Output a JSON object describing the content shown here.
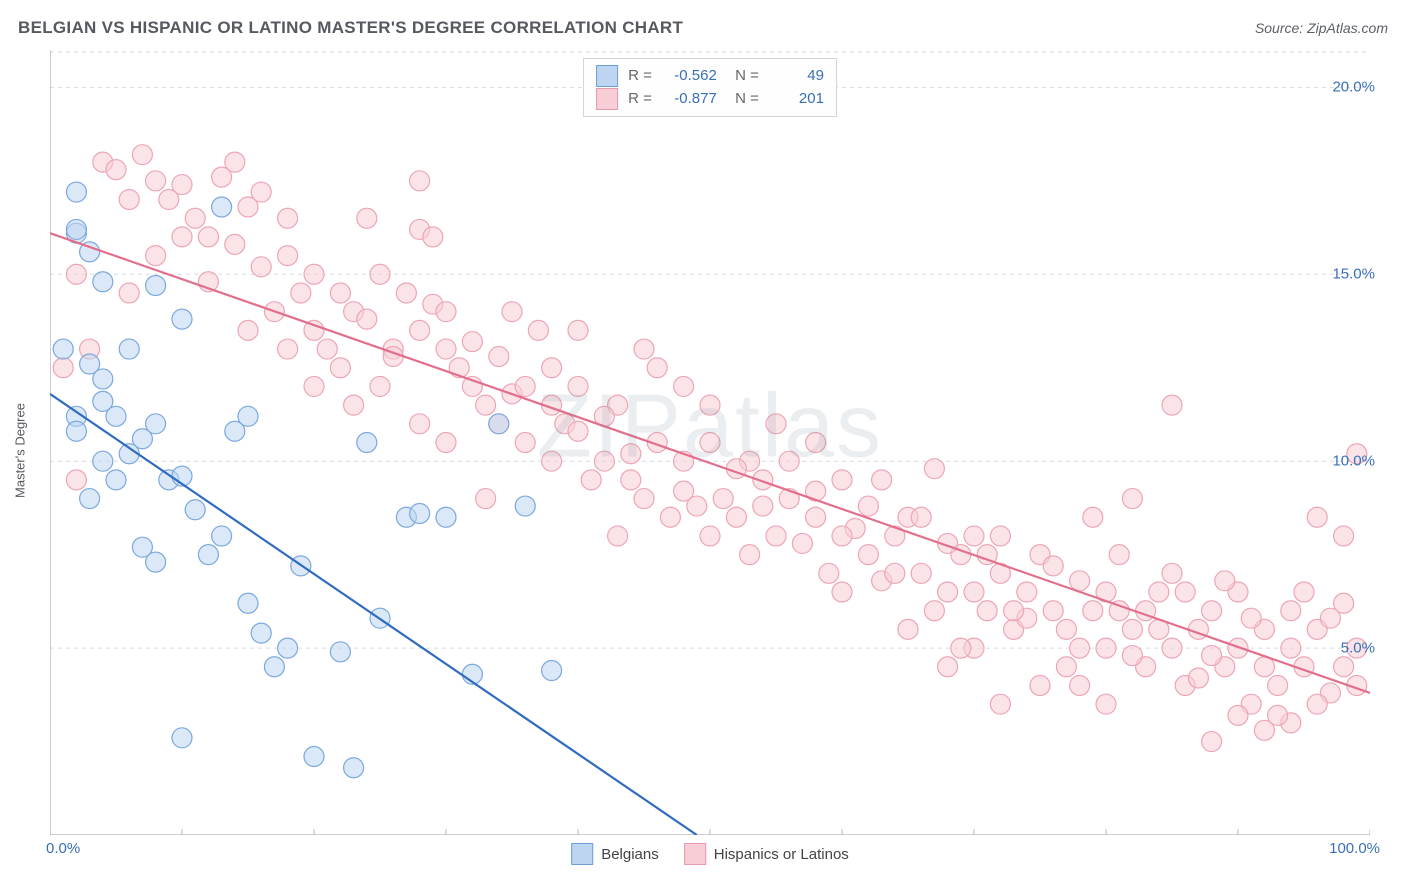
{
  "title": "BELGIAN VS HISPANIC OR LATINO MASTER'S DEGREE CORRELATION CHART",
  "source": "Source: ZipAtlas.com",
  "ylabel": "Master's Degree",
  "watermark": "ZIPatlas",
  "chart": {
    "type": "scatter",
    "xlim": [
      0,
      100
    ],
    "ylim": [
      0,
      21
    ],
    "xticks": [
      0,
      10,
      20,
      30,
      40,
      50,
      60,
      70,
      80,
      90,
      100
    ],
    "xtick_labels_shown": {
      "0": "0.0%",
      "100": "100.0%"
    },
    "yticks": [
      5,
      10,
      15,
      20
    ],
    "ytick_labels": [
      "5.0%",
      "10.0%",
      "15.0%",
      "20.0%"
    ],
    "grid_color": "#d7dbdf",
    "grid_dash": "4,4",
    "axis_color": "#b8bcc0",
    "background": "#ffffff",
    "marker_radius": 10,
    "marker_stroke_width": 1.2,
    "trendline_width": 2.2
  },
  "series": [
    {
      "name": "Belgians",
      "label": "Belgians",
      "fill": "#bdd5f0",
      "stroke": "#7ba8dd",
      "line_color": "#2f6bc0",
      "swatch_fill": "#bdd5f0",
      "swatch_stroke": "#6f9fd8",
      "R": "-0.562",
      "N": "49",
      "trend": {
        "x1": 0,
        "y1": 11.8,
        "x2": 49,
        "y2": 0
      },
      "points": [
        [
          2,
          17.2
        ],
        [
          2,
          16.1
        ],
        [
          2,
          16.2
        ],
        [
          3,
          15.6
        ],
        [
          4,
          14.8
        ],
        [
          1,
          13.0
        ],
        [
          3,
          12.6
        ],
        [
          4,
          12.2
        ],
        [
          5,
          11.2
        ],
        [
          4,
          11.6
        ],
        [
          2,
          11.2
        ],
        [
          2,
          10.8
        ],
        [
          4,
          10.0
        ],
        [
          3,
          9.0
        ],
        [
          5,
          9.5
        ],
        [
          6,
          10.2
        ],
        [
          7,
          10.6
        ],
        [
          8,
          11.0
        ],
        [
          6,
          13.0
        ],
        [
          8,
          14.7
        ],
        [
          9,
          9.5
        ],
        [
          10,
          9.6
        ],
        [
          10,
          13.8
        ],
        [
          11,
          8.7
        ],
        [
          12,
          7.5
        ],
        [
          13,
          8.0
        ],
        [
          13,
          16.8
        ],
        [
          14,
          10.8
        ],
        [
          15,
          6.2
        ],
        [
          15,
          11.2
        ],
        [
          16,
          5.4
        ],
        [
          17,
          4.5
        ],
        [
          18,
          5.0
        ],
        [
          19,
          7.2
        ],
        [
          20,
          2.1
        ],
        [
          22,
          4.9
        ],
        [
          23,
          1.8
        ],
        [
          24,
          10.5
        ],
        [
          25,
          5.8
        ],
        [
          27,
          8.5
        ],
        [
          28,
          8.6
        ],
        [
          30,
          8.5
        ],
        [
          32,
          4.3
        ],
        [
          34,
          11.0
        ],
        [
          36,
          8.8
        ],
        [
          38,
          4.4
        ],
        [
          10,
          2.6
        ],
        [
          7,
          7.7
        ],
        [
          8,
          7.3
        ]
      ]
    },
    {
      "name": "Hispanics or Latinos",
      "label": "Hispanics or Latinos",
      "fill": "#f8cdd6",
      "stroke": "#eda5b5",
      "line_color": "#e26f8b",
      "swatch_fill": "#f8cdd6",
      "swatch_stroke": "#e39aab",
      "R": "-0.877",
      "N": "201",
      "trend": {
        "x1": 0,
        "y1": 16.1,
        "x2": 100,
        "y2": 3.8
      },
      "points": [
        [
          4,
          18.0
        ],
        [
          5,
          17.8
        ],
        [
          6,
          17.0
        ],
        [
          7,
          18.2
        ],
        [
          8,
          17.5
        ],
        [
          9,
          17.0
        ],
        [
          10,
          17.4
        ],
        [
          11,
          16.5
        ],
        [
          12,
          16.0
        ],
        [
          13,
          17.6
        ],
        [
          14,
          18.0
        ],
        [
          15,
          16.8
        ],
        [
          16,
          15.2
        ],
        [
          17,
          14.0
        ],
        [
          18,
          15.5
        ],
        [
          19,
          14.5
        ],
        [
          20,
          13.5
        ],
        [
          21,
          13.0
        ],
        [
          22,
          12.5
        ],
        [
          23,
          14.0
        ],
        [
          24,
          16.5
        ],
        [
          25,
          12.0
        ],
        [
          26,
          13.0
        ],
        [
          27,
          14.5
        ],
        [
          28,
          16.2
        ],
        [
          28,
          17.5
        ],
        [
          29,
          16.0
        ],
        [
          29,
          14.2
        ],
        [
          30,
          13.0
        ],
        [
          31,
          12.5
        ],
        [
          32,
          12.0
        ],
        [
          33,
          11.5
        ],
        [
          34,
          11.0
        ],
        [
          35,
          11.8
        ],
        [
          36,
          10.5
        ],
        [
          37,
          13.5
        ],
        [
          38,
          10.0
        ],
        [
          39,
          11.0
        ],
        [
          40,
          10.8
        ],
        [
          41,
          9.5
        ],
        [
          42,
          10.0
        ],
        [
          43,
          11.5
        ],
        [
          44,
          10.2
        ],
        [
          45,
          9.0
        ],
        [
          46,
          12.5
        ],
        [
          47,
          8.5
        ],
        [
          48,
          9.2
        ],
        [
          49,
          8.8
        ],
        [
          50,
          8.0
        ],
        [
          51,
          9.0
        ],
        [
          52,
          8.5
        ],
        [
          53,
          7.5
        ],
        [
          54,
          9.5
        ],
        [
          55,
          8.0
        ],
        [
          56,
          9.0
        ],
        [
          57,
          7.8
        ],
        [
          58,
          8.5
        ],
        [
          59,
          7.0
        ],
        [
          60,
          9.5
        ],
        [
          61,
          8.2
        ],
        [
          62,
          7.5
        ],
        [
          63,
          6.8
        ],
        [
          64,
          8.0
        ],
        [
          65,
          8.5
        ],
        [
          66,
          7.0
        ],
        [
          67,
          9.8
        ],
        [
          68,
          6.5
        ],
        [
          69,
          7.5
        ],
        [
          70,
          8.0
        ],
        [
          71,
          6.0
        ],
        [
          72,
          7.0
        ],
        [
          73,
          5.5
        ],
        [
          74,
          6.5
        ],
        [
          75,
          7.5
        ],
        [
          76,
          6.0
        ],
        [
          77,
          5.5
        ],
        [
          78,
          6.8
        ],
        [
          79,
          8.5
        ],
        [
          80,
          5.0
        ],
        [
          81,
          6.0
        ],
        [
          82,
          5.5
        ],
        [
          83,
          4.5
        ],
        [
          84,
          6.5
        ],
        [
          85,
          5.0
        ],
        [
          86,
          4.0
        ],
        [
          87,
          5.5
        ],
        [
          88,
          6.0
        ],
        [
          89,
          4.5
        ],
        [
          90,
          5.0
        ],
        [
          91,
          3.5
        ],
        [
          92,
          5.5
        ],
        [
          93,
          4.0
        ],
        [
          94,
          6.0
        ],
        [
          95,
          4.5
        ],
        [
          96,
          5.5
        ],
        [
          97,
          3.8
        ],
        [
          98,
          4.5
        ],
        [
          99,
          5.0
        ],
        [
          99,
          10.2
        ],
        [
          98,
          8.0
        ],
        [
          96,
          8.5
        ],
        [
          94,
          3.0
        ],
        [
          92,
          2.8
        ],
        [
          90,
          3.2
        ],
        [
          88,
          2.5
        ],
        [
          85,
          11.5
        ],
        [
          82,
          9.0
        ],
        [
          80,
          3.5
        ],
        [
          78,
          4.0
        ],
        [
          75,
          4.0
        ],
        [
          72,
          3.5
        ],
        [
          70,
          5.0
        ],
        [
          68,
          4.5
        ],
        [
          65,
          5.5
        ],
        [
          63,
          9.5
        ],
        [
          60,
          6.5
        ],
        [
          58,
          10.5
        ],
        [
          55,
          11.0
        ],
        [
          53,
          10.0
        ],
        [
          50,
          11.5
        ],
        [
          48,
          12.0
        ],
        [
          45,
          13.0
        ],
        [
          43,
          8.0
        ],
        [
          40,
          13.5
        ],
        [
          38,
          12.5
        ],
        [
          35,
          14.0
        ],
        [
          33,
          9.0
        ],
        [
          30,
          10.5
        ],
        [
          28,
          11.0
        ],
        [
          25,
          15.0
        ],
        [
          23,
          11.5
        ],
        [
          20,
          12.0
        ],
        [
          18,
          13.0
        ],
        [
          15,
          13.5
        ],
        [
          2,
          15.0
        ],
        [
          3,
          13.0
        ],
        [
          1,
          12.5
        ],
        [
          2,
          9.5
        ],
        [
          6,
          14.5
        ],
        [
          8,
          15.5
        ],
        [
          10,
          16.0
        ],
        [
          12,
          14.8
        ],
        [
          14,
          15.8
        ],
        [
          16,
          17.2
        ],
        [
          18,
          16.5
        ],
        [
          20,
          15.0
        ],
        [
          22,
          14.5
        ],
        [
          24,
          13.8
        ],
        [
          26,
          12.8
        ],
        [
          28,
          13.5
        ],
        [
          30,
          14.0
        ],
        [
          32,
          13.2
        ],
        [
          34,
          12.8
        ],
        [
          36,
          12.0
        ],
        [
          38,
          11.5
        ],
        [
          40,
          12.0
        ],
        [
          42,
          11.2
        ],
        [
          44,
          9.5
        ],
        [
          46,
          10.5
        ],
        [
          48,
          10.0
        ],
        [
          50,
          10.5
        ],
        [
          52,
          9.8
        ],
        [
          54,
          8.8
        ],
        [
          56,
          10.0
        ],
        [
          58,
          9.2
        ],
        [
          60,
          8.0
        ],
        [
          62,
          8.8
        ],
        [
          64,
          7.0
        ],
        [
          66,
          8.5
        ],
        [
          68,
          7.8
        ],
        [
          70,
          6.5
        ],
        [
          72,
          8.0
        ],
        [
          74,
          5.8
        ],
        [
          76,
          7.2
        ],
        [
          78,
          5.0
        ],
        [
          80,
          6.5
        ],
        [
          82,
          4.8
        ],
        [
          84,
          5.5
        ],
        [
          86,
          6.5
        ],
        [
          88,
          4.8
        ],
        [
          90,
          6.5
        ],
        [
          92,
          4.5
        ],
        [
          94,
          5.0
        ],
        [
          96,
          3.5
        ],
        [
          98,
          6.2
        ],
        [
          99,
          4.0
        ],
        [
          97,
          5.8
        ],
        [
          95,
          6.5
        ],
        [
          93,
          3.2
        ],
        [
          91,
          5.8
        ],
        [
          89,
          6.8
        ],
        [
          87,
          4.2
        ],
        [
          85,
          7.0
        ],
        [
          83,
          6.0
        ],
        [
          81,
          7.5
        ],
        [
          79,
          6.0
        ],
        [
          77,
          4.5
        ],
        [
          73,
          6.0
        ],
        [
          71,
          7.5
        ],
        [
          69,
          5.0
        ],
        [
          67,
          6.0
        ]
      ]
    }
  ],
  "legend_bottom": [
    {
      "label": "Belgians",
      "fill": "#bdd5f0",
      "stroke": "#6f9fd8"
    },
    {
      "label": "Hispanics or Latinos",
      "fill": "#f8cdd6",
      "stroke": "#e39aab"
    }
  ]
}
